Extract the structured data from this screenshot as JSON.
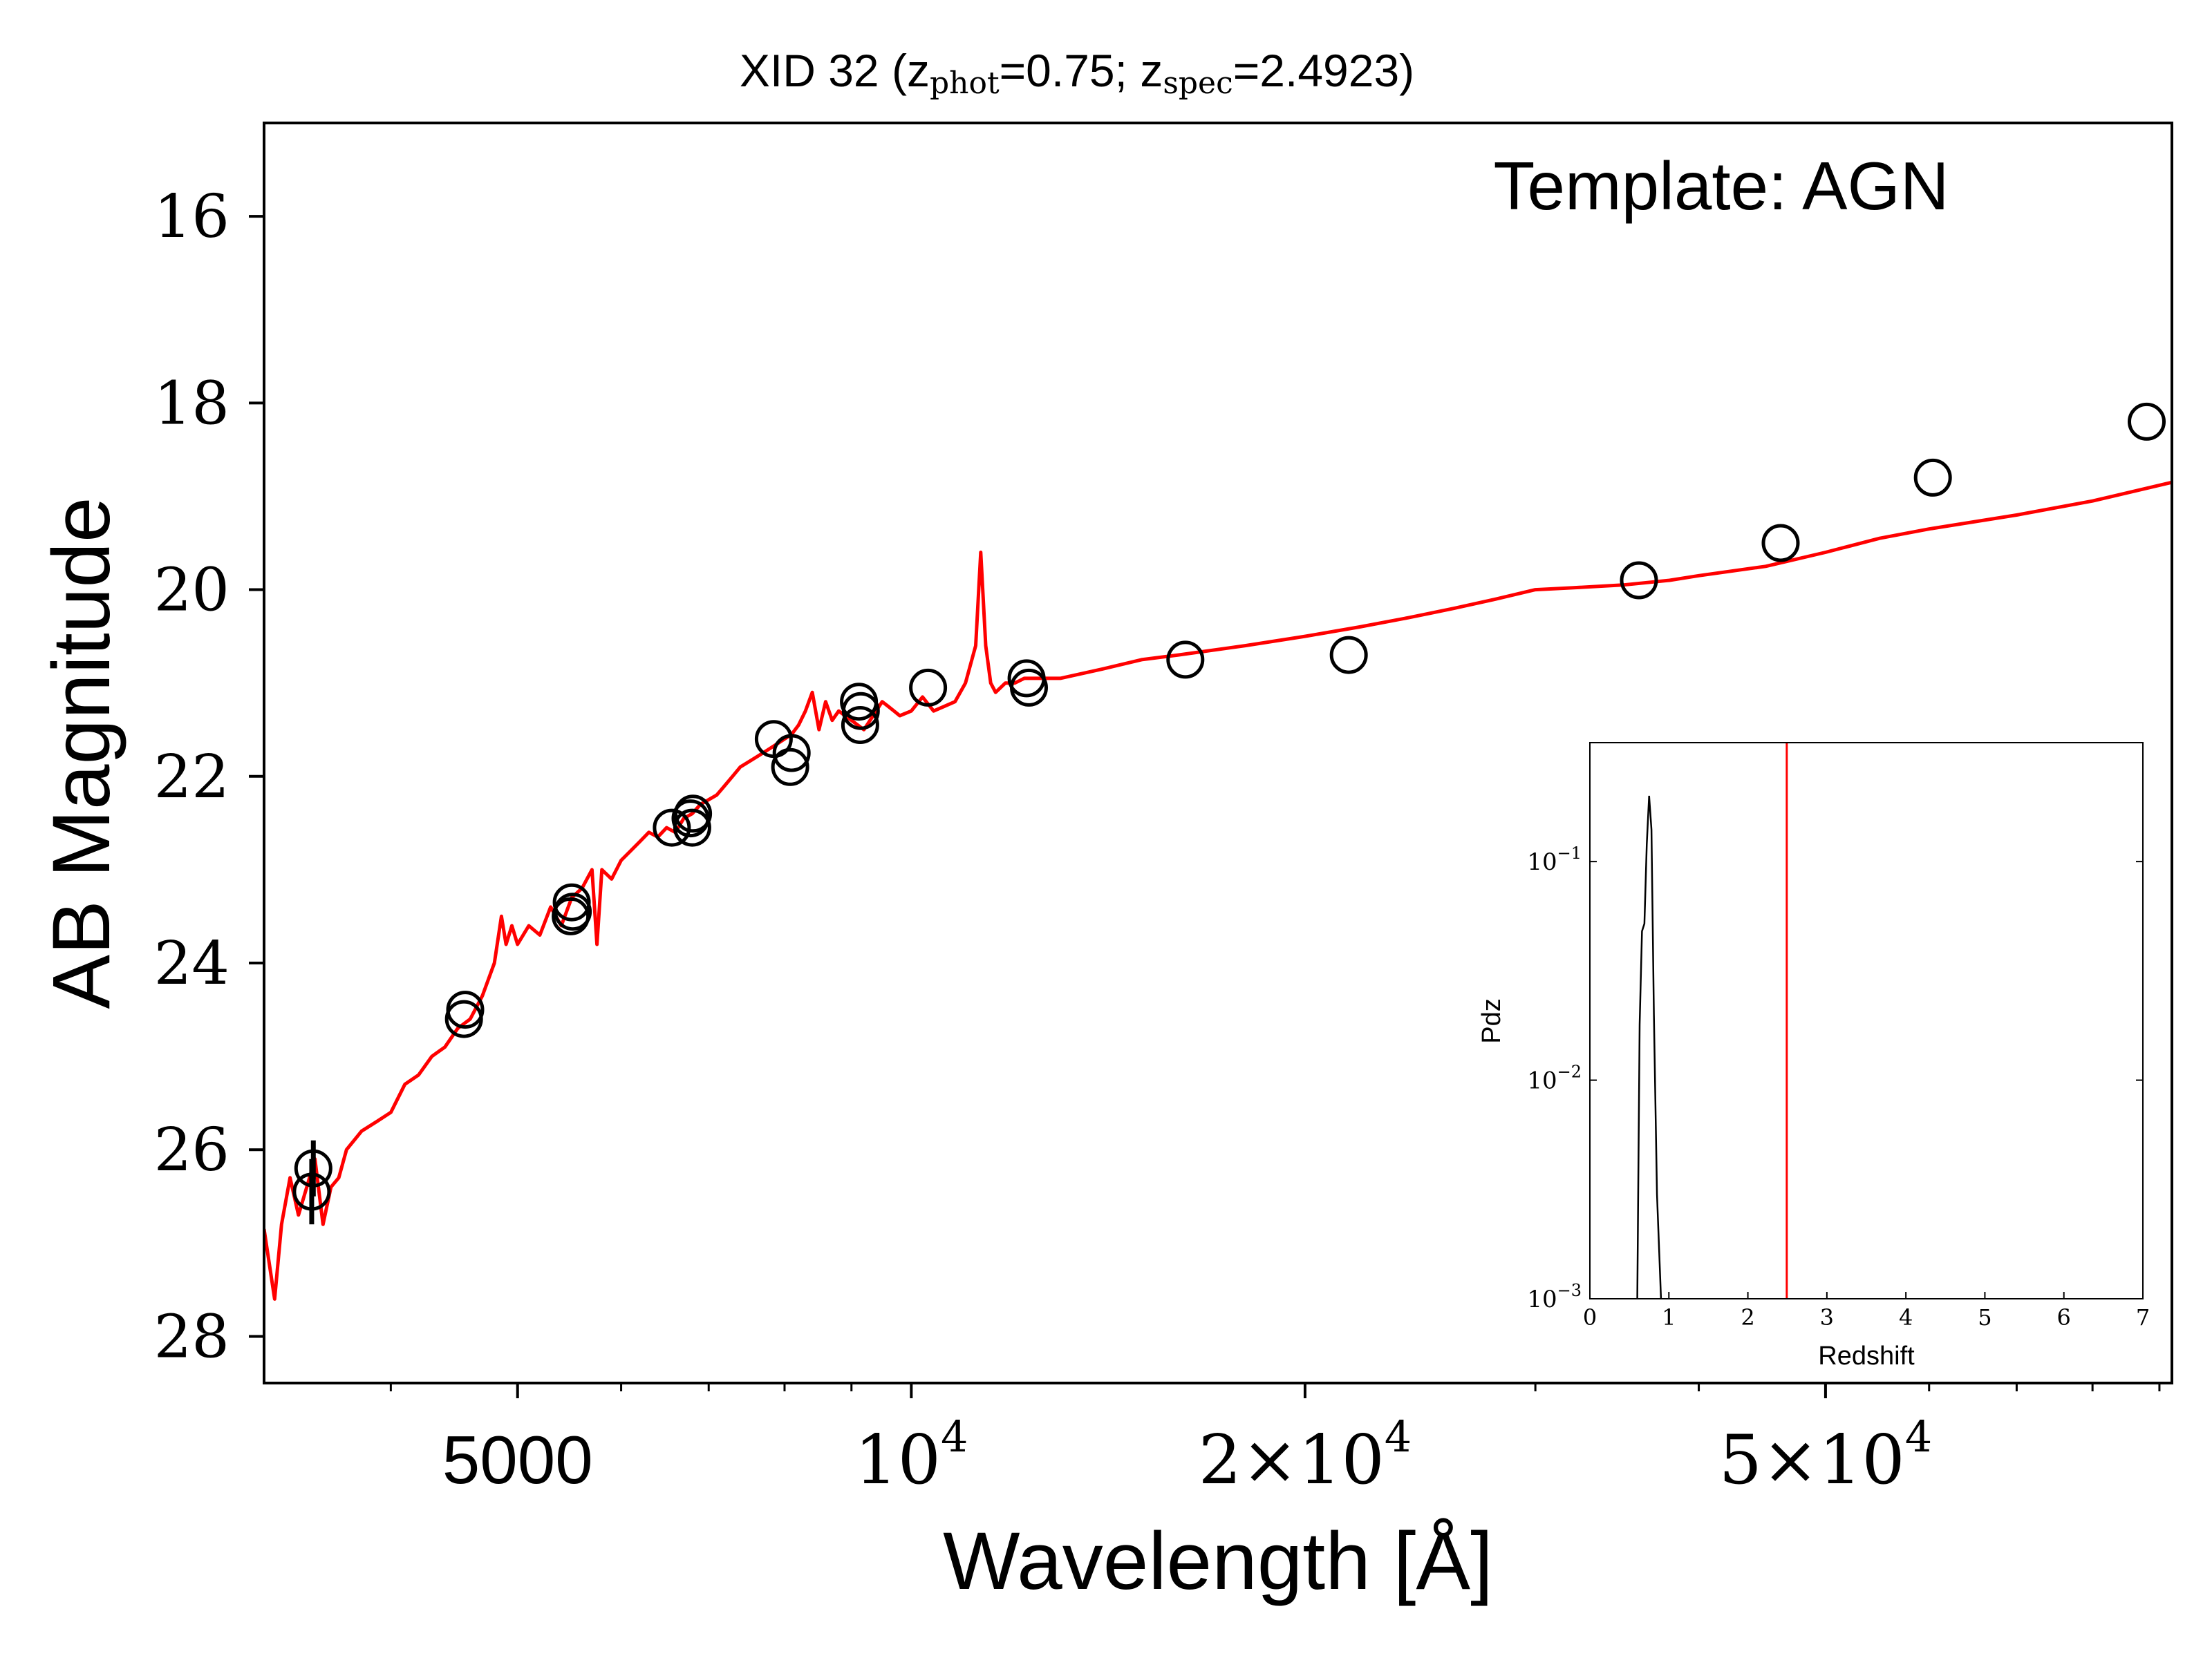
{
  "chart_data": [
    {
      "type": "scatter",
      "title": "XID 32 (z",
      "title_parts": {
        "prefix": "XID 32 (z",
        "sub1": "phot",
        "mid": "=0.75; z",
        "sub2": "spec",
        "suffix": "=2.4923)"
      },
      "annotation": "Template: AGN",
      "xlabel": "Wavelength [Å]",
      "ylabel": "AB Magnitude",
      "xscale": "log",
      "xlim": [
        3200,
        92000
      ],
      "ylim": [
        28.5,
        15
      ],
      "y_inverted": true,
      "xticks_major": [
        {
          "value": 5000,
          "label": "5000"
        },
        {
          "value": 10000,
          "label": "10",
          "sup": "4"
        },
        {
          "value": 20000,
          "label": "2×10",
          "sup": "4"
        },
        {
          "value": 50000,
          "label": "5×10",
          "sup": "4"
        }
      ],
      "xticks_minor": [
        3000,
        4000,
        6000,
        7000,
        8000,
        9000,
        30000,
        40000,
        60000,
        70000,
        80000,
        90000
      ],
      "yticks": [
        {
          "value": 16,
          "label": "16"
        },
        {
          "value": 18,
          "label": "18"
        },
        {
          "value": 20,
          "label": "20"
        },
        {
          "value": 22,
          "label": "22"
        },
        {
          "value": 24,
          "label": "24"
        },
        {
          "value": 26,
          "label": "26"
        },
        {
          "value": 28,
          "label": "28"
        }
      ],
      "series": [
        {
          "kind": "line",
          "color": "#ff0000",
          "x": [
            3200,
            3260,
            3300,
            3350,
            3400,
            3450,
            3500,
            3550,
            3600,
            3650,
            3700,
            3800,
            3900,
            4000,
            4100,
            4200,
            4300,
            4400,
            4500,
            4600,
            4700,
            4800,
            4860,
            4900,
            4950,
            5000,
            5100,
            5200,
            5300,
            5400,
            5500,
            5600,
            5700,
            5750,
            5800,
            5900,
            6000,
            6100,
            6200,
            6300,
            6400,
            6500,
            6600,
            6700,
            6800,
            6900,
            7000,
            7100,
            7200,
            7300,
            7400,
            7500,
            7600,
            7700,
            7800,
            7900,
            8000,
            8100,
            8200,
            8300,
            8400,
            8500,
            8600,
            8700,
            8800,
            8900,
            9000,
            9100,
            9200,
            9300,
            9400,
            9500,
            9600,
            9700,
            9800,
            10000,
            10200,
            10400,
            10600,
            10800,
            11000,
            11200,
            11300,
            11400,
            11500,
            11600,
            11700,
            11800,
            12000,
            12200,
            12500,
            13000,
            14000,
            15000,
            16000,
            18000,
            20000,
            22000,
            24000,
            26000,
            28000,
            30000,
            32000,
            35000,
            38000,
            40000,
            45000,
            50000,
            55000,
            60000,
            70000,
            80000,
            92000
          ],
          "y": [
            26.85,
            27.6,
            26.8,
            26.3,
            26.7,
            26.4,
            26.1,
            26.8,
            26.4,
            26.3,
            26.0,
            25.8,
            25.7,
            25.6,
            25.3,
            25.2,
            25.0,
            24.9,
            24.7,
            24.6,
            24.35,
            24.0,
            23.5,
            23.8,
            23.6,
            23.8,
            23.6,
            23.7,
            23.4,
            23.6,
            23.3,
            23.2,
            23.0,
            23.8,
            23.0,
            23.1,
            22.9,
            22.8,
            22.7,
            22.6,
            22.65,
            22.55,
            22.6,
            22.45,
            22.4,
            22.3,
            22.25,
            22.2,
            22.1,
            22.0,
            21.9,
            21.85,
            21.8,
            21.75,
            21.7,
            21.65,
            21.6,
            21.55,
            21.45,
            21.3,
            21.1,
            21.5,
            21.2,
            21.4,
            21.3,
            21.35,
            21.4,
            21.45,
            21.5,
            21.4,
            21.3,
            21.2,
            21.25,
            21.3,
            21.35,
            21.3,
            21.15,
            21.3,
            21.25,
            21.2,
            21.0,
            20.6,
            19.6,
            20.6,
            21.0,
            21.1,
            21.05,
            21.0,
            21.0,
            20.95,
            20.95,
            20.95,
            20.85,
            20.75,
            20.7,
            20.6,
            20.5,
            20.4,
            20.3,
            20.2,
            20.1,
            20.0,
            19.98,
            19.95,
            19.9,
            19.85,
            19.75,
            19.6,
            19.45,
            19.35,
            19.2,
            19.05,
            18.85
          ]
        },
        {
          "kind": "scatter",
          "color": "#000000",
          "x": [
            3480,
            3490,
            4550,
            4560,
            5490,
            5500,
            5510,
            6560,
            6780,
            6800,
            6810,
            7850,
            8080,
            8100,
            9120,
            9140,
            9150,
            10300,
            12250,
            12300,
            16200,
            21600,
            36000,
            46200,
            60400,
            88000
          ],
          "y": [
            26.45,
            26.2,
            24.6,
            24.5,
            23.5,
            23.35,
            23.45,
            22.55,
            22.45,
            22.55,
            22.4,
            21.6,
            21.9,
            21.75,
            21.2,
            21.45,
            21.3,
            21.05,
            20.95,
            21.05,
            20.75,
            20.7,
            19.9,
            19.5,
            18.8,
            18.2
          ],
          "yerr": [
            0.35,
            0.3,
            0.05,
            0.05,
            0.05,
            0.05,
            0.05,
            0.05,
            0.05,
            0.05,
            0.05,
            0.05,
            0.05,
            0.05,
            0.05,
            0.05,
            0.05,
            0.05,
            0.05,
            0.05,
            0.05,
            0.05,
            0.05,
            0.05,
            0.05,
            0.05
          ]
        }
      ]
    },
    {
      "type": "line",
      "title": "",
      "xlabel": "Redshift",
      "ylabel": "Pdz",
      "xscale": "linear",
      "yscale": "log",
      "xlim": [
        0,
        7
      ],
      "ylim": [
        0.001,
        0.35
      ],
      "xticks": [
        0,
        1,
        2,
        3,
        4,
        5,
        6,
        7
      ],
      "yticks": [
        {
          "value": 0.1,
          "base": "10",
          "sup": "−1"
        },
        {
          "value": 0.01,
          "base": "10",
          "sup": "−2"
        },
        {
          "value": 0.001,
          "base": "10",
          "sup": "−3"
        }
      ],
      "series": [
        {
          "kind": "line",
          "color": "#000000",
          "x": [
            0.6,
            0.63,
            0.66,
            0.69,
            0.72,
            0.75,
            0.78,
            0.81,
            0.85,
            0.9
          ],
          "y": [
            0.001,
            0.018,
            0.048,
            0.052,
            0.12,
            0.2,
            0.14,
            0.02,
            0.003,
            0.001
          ]
        }
      ],
      "vline": {
        "x": 2.4923,
        "color": "#ff0000"
      }
    }
  ]
}
